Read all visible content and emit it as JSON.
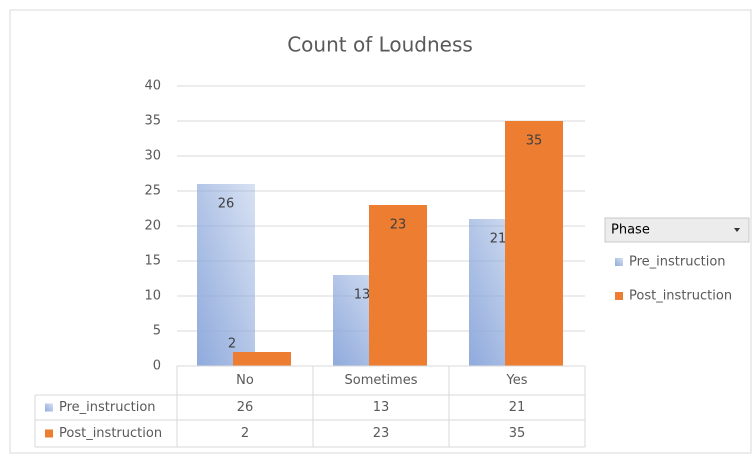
{
  "chart_data": {
    "type": "bar",
    "title": "Count of Loudness",
    "categories": [
      "No",
      "Sometimes",
      "Yes"
    ],
    "series": [
      {
        "name": "Pre_instruction",
        "color": "#8faadc",
        "values": [
          26,
          13,
          21
        ]
      },
      {
        "name": "Post_instruction",
        "color": "#ed7d31",
        "values": [
          2,
          23,
          35
        ]
      }
    ],
    "ylim": [
      0,
      40
    ],
    "yticks": [
      0,
      5,
      10,
      15,
      20,
      25,
      30,
      35,
      40
    ],
    "grid": true,
    "legend_title": "Phase",
    "legend_position": "right",
    "data_table": true
  }
}
